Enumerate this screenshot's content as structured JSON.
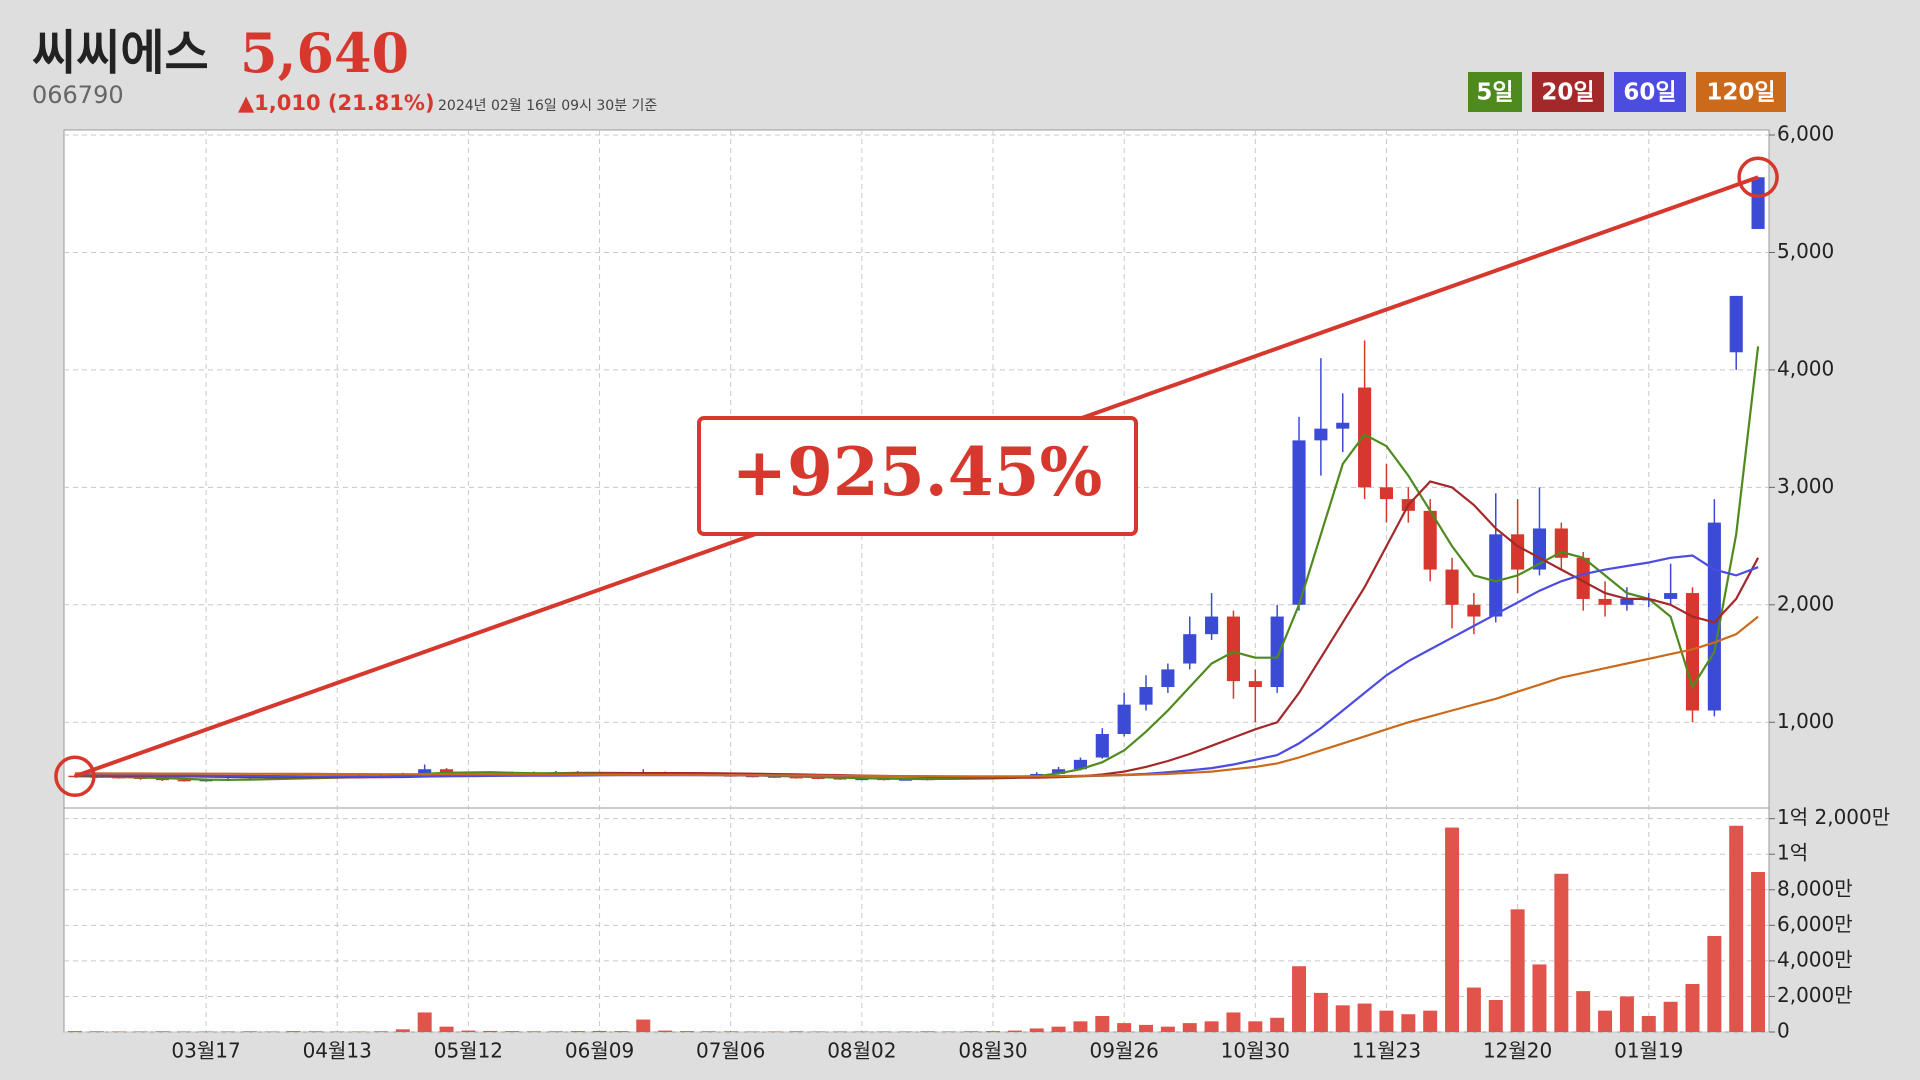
{
  "chart_data": {
    "type": "candlestick",
    "title": "씨씨에스",
    "price": "5,640",
    "code": "066790",
    "change": "▲1,010 (21.81%)",
    "timestamp": "2024년 02월 16일 09시 30분 기준",
    "annotation": "+925.45%",
    "up_color": "#3b4bd6",
    "down_color": "#d6382d",
    "volume_color": "#e0544c",
    "grid": true,
    "categories": [
      null,
      null,
      null,
      null,
      null,
      null,
      "03월17",
      null,
      null,
      null,
      null,
      null,
      "04월13",
      null,
      null,
      null,
      null,
      null,
      "05월12",
      null,
      null,
      null,
      null,
      null,
      "06월09",
      null,
      null,
      null,
      null,
      null,
      "07월06",
      null,
      null,
      null,
      null,
      null,
      "08월02",
      null,
      null,
      null,
      null,
      null,
      "08월30",
      null,
      null,
      null,
      null,
      null,
      "09월26",
      null,
      null,
      null,
      null,
      null,
      "10월30",
      null,
      null,
      null,
      null,
      null,
      "11월23",
      null,
      null,
      null,
      null,
      null,
      "12월20",
      null,
      null,
      null,
      null,
      null,
      "01월19",
      null,
      null,
      null,
      null,
      null
    ],
    "open": [
      545,
      540,
      535,
      530,
      520,
      510,
      505,
      510,
      515,
      520,
      525,
      530,
      530,
      535,
      540,
      545,
      560,
      600,
      570,
      560,
      565,
      570,
      570,
      575,
      570,
      565,
      560,
      570,
      560,
      555,
      550,
      545,
      540,
      535,
      530,
      525,
      520,
      520,
      515,
      515,
      520,
      525,
      525,
      530,
      535,
      560,
      600,
      700,
      900,
      1150,
      1300,
      1500,
      1750,
      1900,
      1350,
      1300,
      2000,
      3400,
      3500,
      3850,
      3000,
      2900,
      2800,
      2300,
      2000,
      1900,
      2600,
      2300,
      2650,
      2400,
      2050,
      2000,
      2050,
      2050,
      2100,
      1100,
      4150,
      5200
    ],
    "high": [
      555,
      550,
      545,
      540,
      530,
      520,
      520,
      525,
      530,
      535,
      540,
      540,
      545,
      550,
      555,
      570,
      640,
      610,
      580,
      575,
      580,
      580,
      585,
      585,
      580,
      575,
      600,
      580,
      570,
      565,
      560,
      555,
      550,
      545,
      540,
      535,
      530,
      530,
      525,
      530,
      535,
      535,
      540,
      545,
      575,
      620,
      700,
      950,
      1250,
      1400,
      1500,
      1900,
      2100,
      1950,
      1450,
      2000,
      3600,
      4100,
      3800,
      4250,
      3200,
      3000,
      2900,
      2400,
      2100,
      2950,
      2900,
      3000,
      2700,
      2450,
      2200,
      2150,
      2100,
      2350,
      2150,
      2900,
      4630,
      5640
    ],
    "low": [
      530,
      525,
      520,
      510,
      500,
      495,
      495,
      500,
      505,
      510,
      515,
      520,
      520,
      525,
      530,
      535,
      550,
      560,
      550,
      550,
      555,
      560,
      560,
      560,
      555,
      550,
      550,
      550,
      545,
      540,
      535,
      530,
      525,
      520,
      515,
      510,
      505,
      505,
      505,
      505,
      510,
      515,
      515,
      520,
      530,
      555,
      590,
      690,
      880,
      1100,
      1250,
      1450,
      1700,
      1200,
      1000,
      1250,
      1950,
      3100,
      3300,
      2900,
      2700,
      2700,
      2200,
      1800,
      1750,
      1850,
      2100,
      2250,
      2300,
      1950,
      1900,
      1950,
      1980,
      2000,
      1000,
      1050,
      4000,
      5200
    ],
    "close": [
      540,
      535,
      530,
      520,
      510,
      505,
      510,
      515,
      520,
      525,
      530,
      530,
      535,
      540,
      545,
      560,
      600,
      570,
      560,
      565,
      570,
      570,
      575,
      570,
      565,
      560,
      570,
      560,
      555,
      550,
      545,
      540,
      535,
      530,
      525,
      520,
      520,
      515,
      515,
      520,
      525,
      525,
      530,
      535,
      560,
      600,
      680,
      900,
      1150,
      1300,
      1450,
      1750,
      1900,
      1350,
      1300,
      1900,
      3400,
      3500,
      3550,
      3000,
      2900,
      2800,
      2300,
      2000,
      1900,
      2600,
      2300,
      2650,
      2400,
      2050,
      2000,
      2050,
      2050,
      2100,
      1100,
      2700,
      4630,
      5640
    ],
    "volume": [
      500000,
      400000,
      300000,
      300000,
      400000,
      300000,
      300000,
      300000,
      400000,
      300000,
      500000,
      400000,
      300000,
      300000,
      400000,
      1500000,
      11000000,
      3000000,
      800000,
      600000,
      500000,
      400000,
      400000,
      500000,
      600000,
      500000,
      7000000,
      800000,
      500000,
      400000,
      400000,
      300000,
      300000,
      400000,
      300000,
      300000,
      300000,
      300000,
      300000,
      400000,
      300000,
      400000,
      500000,
      800000,
      2000000,
      3000000,
      6000000,
      9000000,
      5000000,
      4000000,
      3000000,
      5000000,
      6000000,
      11000000,
      6000000,
      8000000,
      37000000,
      22000000,
      15000000,
      16000000,
      12000000,
      10000000,
      12000000,
      115000000,
      25000000,
      18000000,
      69000000,
      38000000,
      89000000,
      23000000,
      12000000,
      20000000,
      9000000,
      17000000,
      27000000,
      54000000,
      116000000,
      90000000
    ],
    "series": [
      {
        "name": "5일",
        "color": "#4f8a1f",
        "values": [
          540,
          538,
          535,
          530,
          525,
          518,
          512,
          510,
          512,
          515,
          520,
          524,
          528,
          532,
          537,
          545,
          560,
          570,
          572,
          575,
          570,
          566,
          566,
          570,
          570,
          568,
          566,
          565,
          562,
          558,
          553,
          548,
          543,
          538,
          533,
          528,
          524,
          520,
          518,
          517,
          518,
          520,
          522,
          526,
          540,
          565,
          600,
          660,
          760,
          920,
          1100,
          1300,
          1500,
          1600,
          1550,
          1550,
          2000,
          2600,
          3200,
          3450,
          3350,
          3100,
          2800,
          2500,
          2250,
          2200,
          2250,
          2350,
          2450,
          2400,
          2250,
          2100,
          2050,
          1900,
          1300,
          1600,
          2600,
          4200
        ]
      },
      {
        "name": "20일",
        "color": "#a3282a",
        "values": [
          545,
          545,
          544,
          543,
          541,
          539,
          537,
          535,
          533,
          532,
          531,
          531,
          531,
          531,
          532,
          534,
          538,
          542,
          546,
          550,
          553,
          556,
          559,
          562,
          565,
          566,
          567,
          567,
          567,
          566,
          564,
          562,
          559,
          556,
          553,
          550,
          546,
          542,
          538,
          535,
          532,
          530,
          529,
          528,
          528,
          532,
          540,
          555,
          580,
          620,
          670,
          730,
          800,
          870,
          940,
          1000,
          1250,
          1550,
          1850,
          2150,
          2500,
          2850,
          3050,
          3000,
          2850,
          2650,
          2500,
          2400,
          2300,
          2200,
          2100,
          2050,
          2050,
          2000,
          1900,
          1850,
          2050,
          2400
        ]
      },
      {
        "name": "60일",
        "color": "#4c4ce0",
        "values": [
          550,
          550,
          549,
          548,
          547,
          546,
          545,
          544,
          543,
          542,
          541,
          540,
          540,
          539,
          539,
          539,
          540,
          541,
          542,
          543,
          544,
          545,
          546,
          547,
          548,
          549,
          550,
          550,
          550,
          549,
          548,
          547,
          546,
          545,
          544,
          543,
          542,
          541,
          540,
          539,
          538,
          537,
          536,
          535,
          536,
          538,
          540,
          545,
          552,
          560,
          575,
          590,
          610,
          640,
          680,
          720,
          820,
          950,
          1100,
          1250,
          1400,
          1520,
          1620,
          1720,
          1820,
          1920,
          2020,
          2120,
          2200,
          2260,
          2300,
          2330,
          2360,
          2400,
          2420,
          2300,
          2250,
          2320
        ]
      },
      {
        "name": "120일",
        "color": "#cc6a1c",
        "values": [
          565,
          565,
          564,
          564,
          563,
          563,
          562,
          562,
          561,
          561,
          560,
          560,
          559,
          559,
          558,
          558,
          558,
          558,
          557,
          557,
          556,
          556,
          555,
          555,
          554,
          554,
          553,
          553,
          552,
          551,
          550,
          549,
          548,
          547,
          546,
          545,
          544,
          543,
          542,
          541,
          540,
          540,
          540,
          540,
          541,
          542,
          544,
          546,
          550,
          555,
          560,
          570,
          580,
          600,
          620,
          650,
          700,
          760,
          820,
          880,
          940,
          1000,
          1050,
          1100,
          1150,
          1200,
          1260,
          1320,
          1380,
          1420,
          1460,
          1500,
          1540,
          1580,
          1620,
          1680,
          1750,
          1900
        ]
      }
    ],
    "ylim": [
      270,
      6000
    ],
    "yticks": [
      {
        "value": 1000,
        "label": "1,000"
      },
      {
        "value": 2000,
        "label": "2,000"
      },
      {
        "value": 3000,
        "label": "3,000"
      },
      {
        "value": 4000,
        "label": "4,000"
      },
      {
        "value": 5000,
        "label": "5,000"
      },
      {
        "value": 6000,
        "label": "6,000"
      }
    ],
    "volume_ylim": [
      0,
      126000000
    ],
    "volume_yticks": [
      0,
      {
        "value": 20000000,
        "label": "2,000만"
      },
      {
        "value": 40000000,
        "label": "4,000만"
      },
      {
        "value": 60000000,
        "label": "6,000만"
      },
      {
        "value": 80000000,
        "label": "8,000만"
      },
      {
        "value": 100000000,
        "label": "1억"
      },
      {
        "value": 120000000,
        "label": "1억 2,000만"
      }
    ]
  }
}
